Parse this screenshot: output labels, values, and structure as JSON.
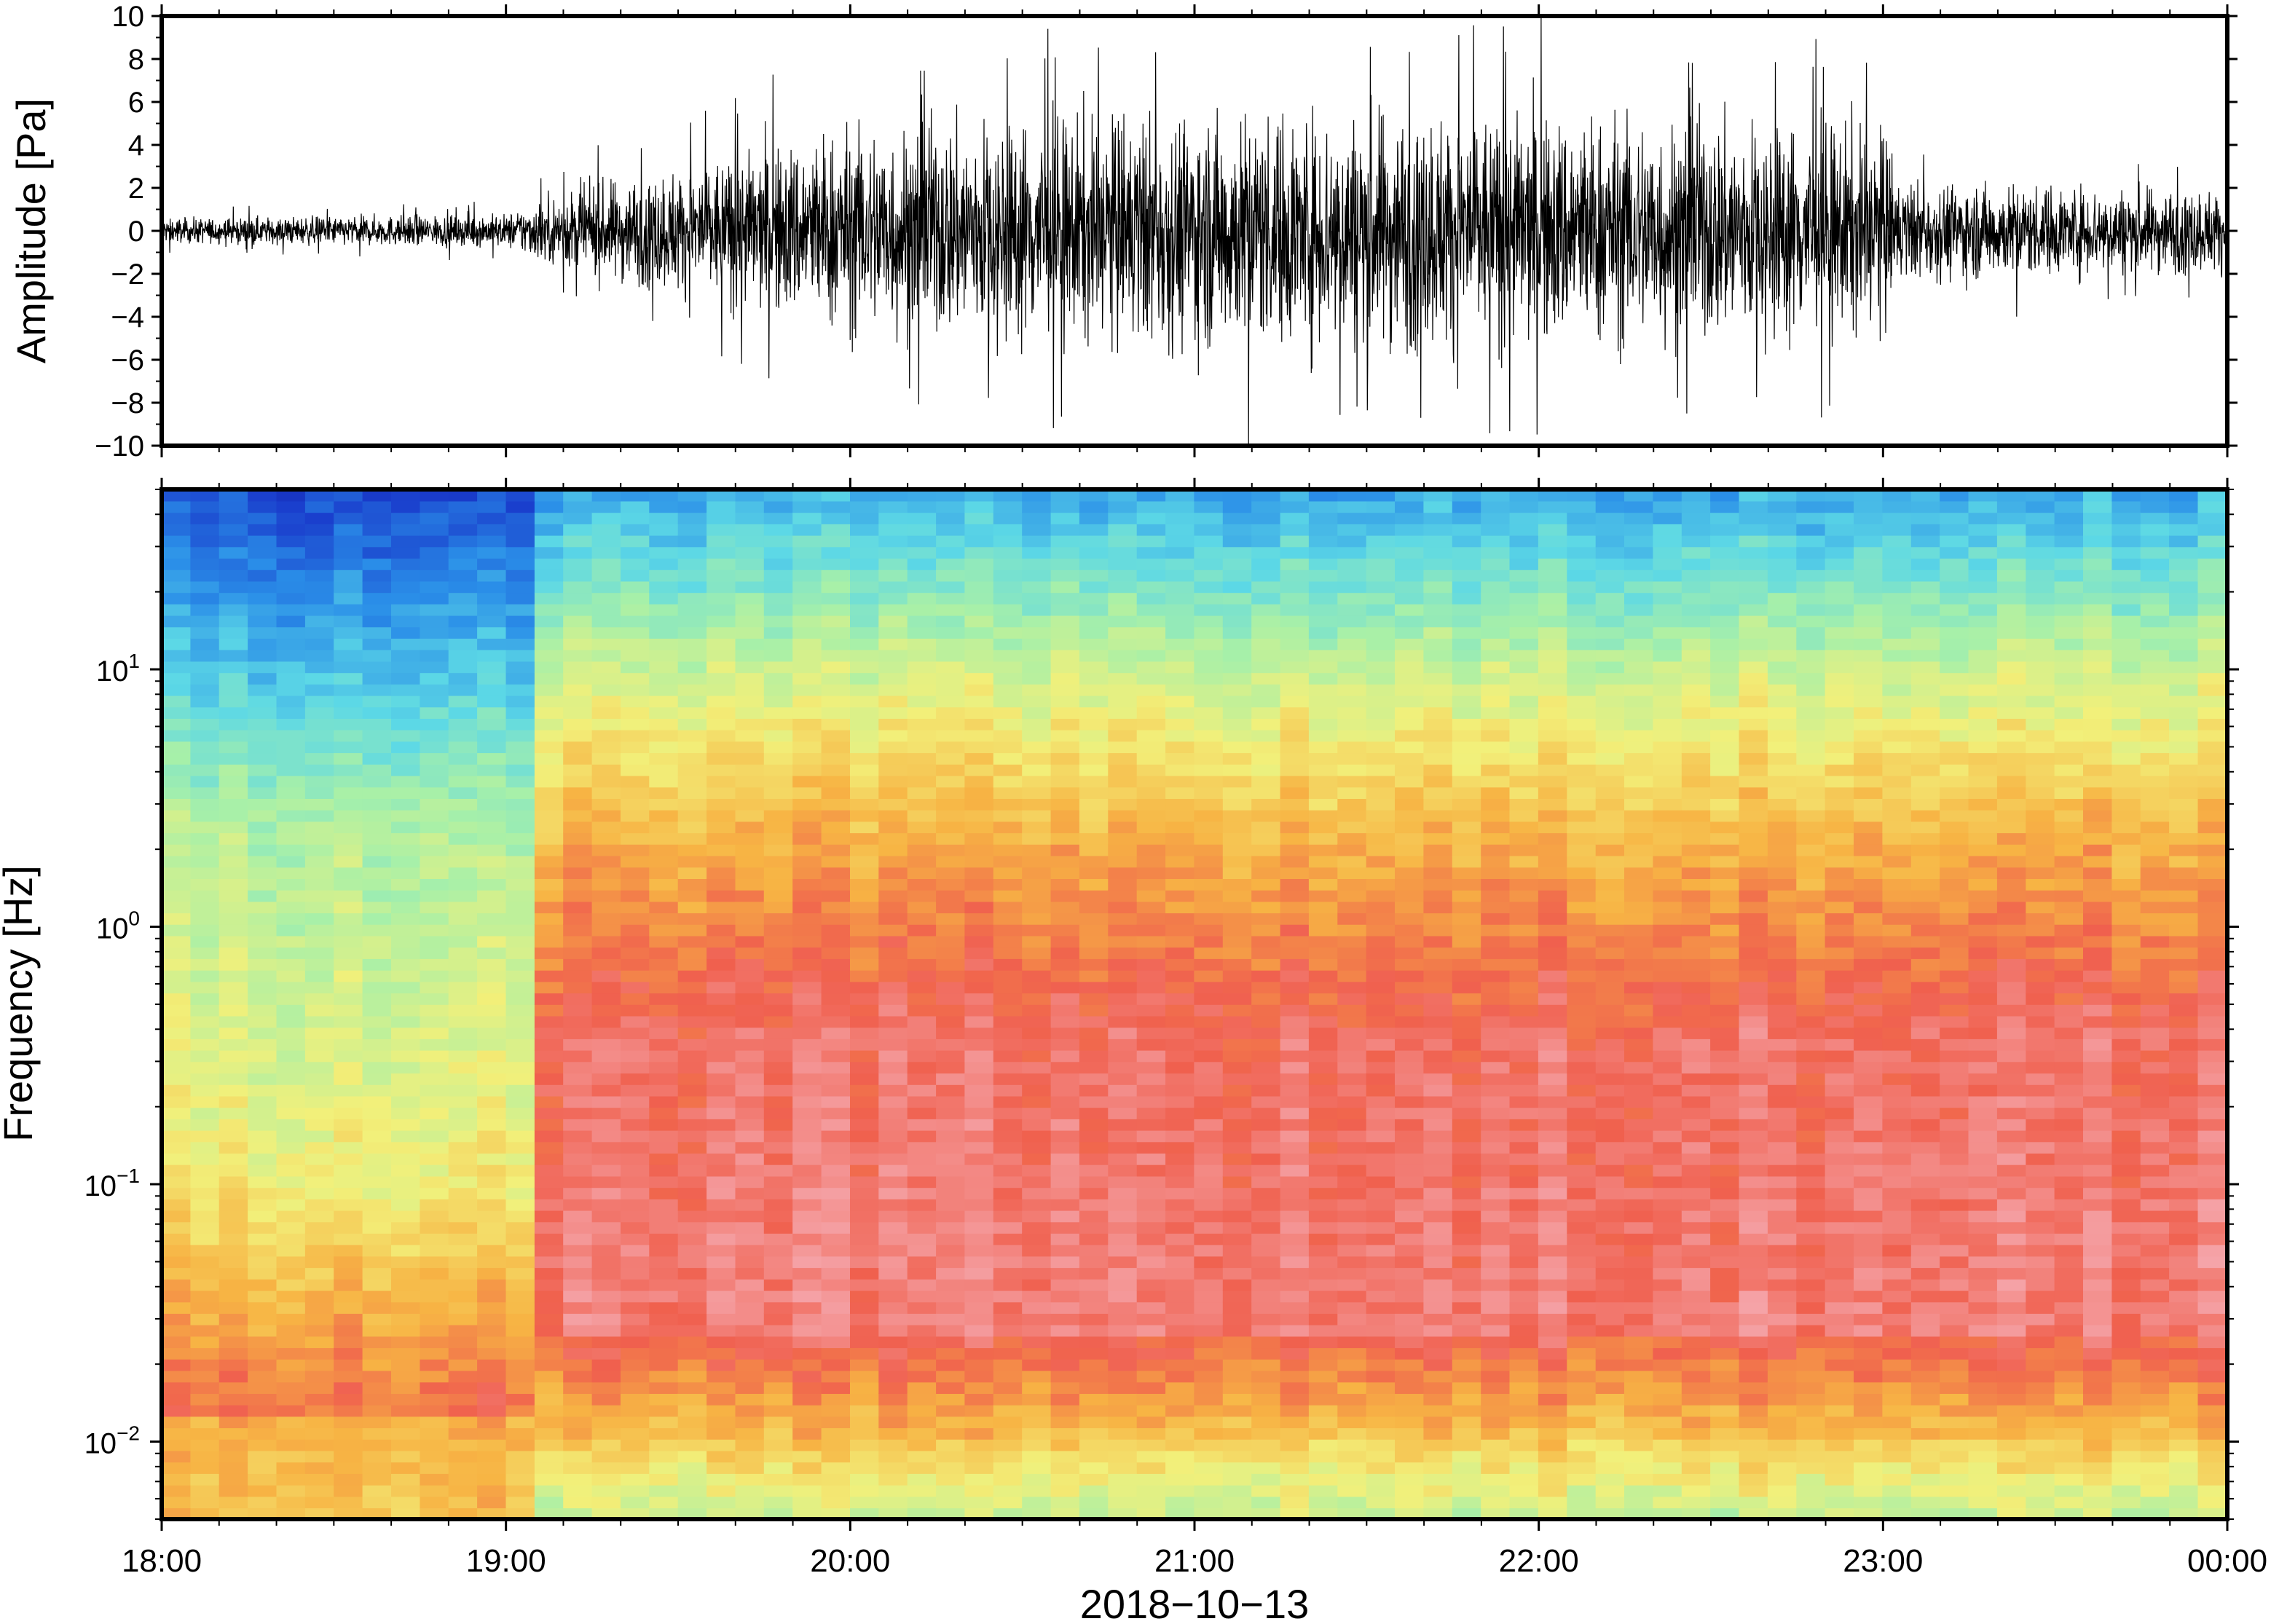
{
  "chart_data": [
    {
      "type": "line",
      "title": "",
      "xlabel": "",
      "ylabel": "Amplitude [Pa]",
      "ylim": [
        -10,
        10
      ],
      "yticks": [
        10,
        8,
        6,
        4,
        2,
        0,
        -2,
        -4,
        -6,
        -8,
        -10
      ],
      "ytick_labels": [
        "10",
        "8",
        "6",
        "4",
        "2",
        "0",
        "−2",
        "−4",
        "−6",
        "−8",
        "−10"
      ],
      "x_range": [
        "18:00",
        "00:00"
      ],
      "grid": false,
      "series": [
        {
          "color": "#000000",
          "envelope_hours": [
            0.0,
            0.5,
            1.0,
            1.1,
            1.25,
            1.5,
            2.0,
            2.5,
            3.0,
            3.5,
            4.0,
            4.5,
            5.0,
            5.05,
            5.5,
            6.0
          ],
          "envelope_amplitude": [
            0.6,
            0.7,
            0.8,
            1.5,
            2.2,
            3.0,
            5.0,
            5.4,
            5.6,
            5.8,
            5.6,
            5.4,
            5.0,
            2.4,
            2.2,
            2.0
          ],
          "peak_positive": 9.8,
          "peak_negative": -10
        }
      ]
    },
    {
      "type": "heatmap",
      "title": "",
      "xlabel": "2018−10−13",
      "ylabel": "Frequency [Hz]",
      "y_scale": "log",
      "ylim": [
        0.005,
        50
      ],
      "yticks": [
        10,
        1,
        0.1,
        0.01
      ],
      "ytick_labels": [
        {
          "base": "10",
          "exp": "1"
        },
        {
          "base": "10",
          "exp": "0"
        },
        {
          "base": "10",
          "exp": "−1"
        },
        {
          "base": "10",
          "exp": "−2"
        }
      ],
      "xtick_labels": [
        "18:00",
        "19:00",
        "20:00",
        "21:00",
        "22:00",
        "23:00",
        "00:00"
      ],
      "colormap": [
        "#0a0a8c",
        "#1a3dcc",
        "#2a8ee8",
        "#5cd8e6",
        "#a8f0a8",
        "#f2f07a",
        "#f7b444",
        "#f0604e",
        "#f5a8ae"
      ],
      "time_blocks_hours": 0.0833,
      "regime_change_hour": 1.12,
      "grid": false
    }
  ]
}
